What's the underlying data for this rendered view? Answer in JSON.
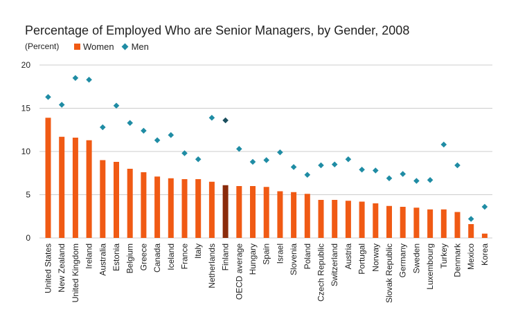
{
  "chart_data": {
    "type": "bar",
    "title": "Percentage of Employed Who are Senior Managers, by Gender, 2008",
    "ylabel": "(Percent)",
    "ylim": [
      0,
      20
    ],
    "yticks": [
      0,
      5,
      10,
      15,
      20
    ],
    "grid": true,
    "legend_position": "top-left",
    "categories": [
      "United States",
      "New Zealand",
      "United Kingdom",
      "Ireland",
      "Australia",
      "Estonia",
      "Belgium",
      "Greece",
      "Canada",
      "Iceland",
      "France",
      "Italy",
      "Netherlands",
      "Finland",
      "OECD average",
      "Hungary",
      "Spain",
      "Israel",
      "Slovenia",
      "Poland",
      "Czech Republic",
      "Switzerland",
      "Austria",
      "Portugal",
      "Norway",
      "Slovak Republic",
      "Germany",
      "Sweden",
      "Luxembourg",
      "Turkey",
      "Denmark",
      "Mexico",
      "Korea"
    ],
    "highlight_category": "Finland",
    "series": [
      {
        "name": "Women",
        "type": "bar",
        "values": [
          13.9,
          11.7,
          11.6,
          11.3,
          9.0,
          8.8,
          8.0,
          7.6,
          7.1,
          6.9,
          6.8,
          6.8,
          6.5,
          6.1,
          6.0,
          6.0,
          5.9,
          5.4,
          5.3,
          5.1,
          4.4,
          4.4,
          4.3,
          4.2,
          4.0,
          3.7,
          3.6,
          3.5,
          3.3,
          3.3,
          3.0,
          1.6,
          0.5
        ]
      },
      {
        "name": "Men",
        "type": "scatter",
        "values": [
          16.3,
          15.4,
          18.5,
          18.3,
          12.8,
          15.3,
          13.3,
          12.4,
          11.3,
          11.9,
          9.8,
          9.1,
          13.9,
          13.6,
          10.3,
          8.8,
          9.0,
          9.9,
          8.2,
          7.3,
          8.4,
          8.5,
          9.1,
          7.9,
          7.8,
          6.9,
          7.4,
          6.6,
          6.7,
          10.8,
          8.4,
          2.2,
          3.6
        ]
      }
    ]
  },
  "colors": {
    "women": "#f05a14",
    "women_highlight": "#8a2b0b",
    "men": "#1f8ca4",
    "men_highlight": "#1b4f5e",
    "grid": "#cccccc"
  }
}
